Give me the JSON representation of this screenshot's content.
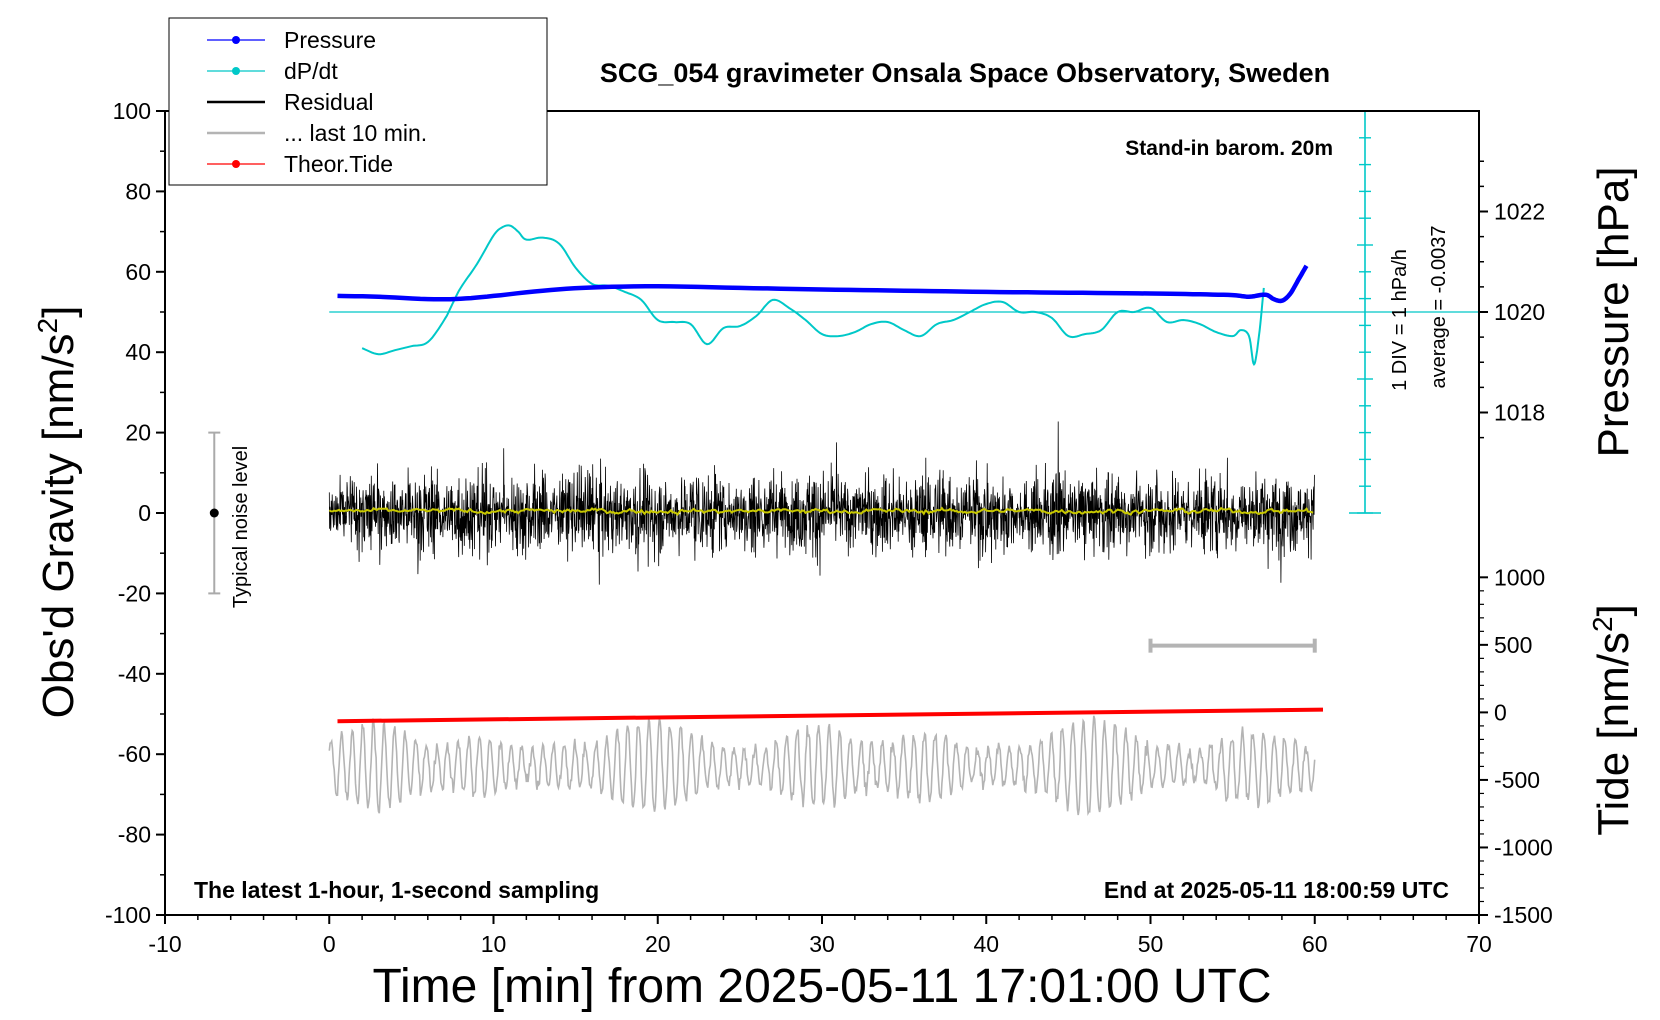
{
  "chart_data": {
    "type": "line",
    "title": "SCG_054 gravimeter Onsala Space Observatory, Sweden",
    "xlabel": "Time [min] from 2025-05-11 17:01:00 UTC",
    "ylabel_left": "Obs'd Gravity [nm/s",
    "ylabel_left_sup": "2",
    "ylabel_left_end": "]",
    "ylabel_right_top": "Pressure [hPa]",
    "ylabel_right_bottom": "Tide [nm/s",
    "ylabel_right_bottom_sup": "2",
    "ylabel_right_bottom_end": "]",
    "xlim": [
      -10,
      70
    ],
    "ylim": [
      -100,
      100
    ],
    "pressure_ylim_visible": [
      1018,
      1022
    ],
    "tide_ylim": [
      -1500,
      1000
    ],
    "x_ticks": [
      "-10",
      "0",
      "10",
      "20",
      "30",
      "40",
      "50",
      "60",
      "70"
    ],
    "y_ticks": [
      "100",
      "80",
      "60",
      "40",
      "20",
      "0",
      "-20",
      "-40",
      "-60",
      "-80",
      "-100"
    ],
    "pressure_ticks": [
      "1022",
      "1020",
      "1018"
    ],
    "tide_ticks": [
      "1000",
      "500",
      "0",
      "-500",
      "-1000",
      "-1500"
    ],
    "annotations": {
      "barometer": "Stand-in barom. 20m",
      "latest": "The latest 1-hour, 1-second sampling",
      "end": "End at 2025-05-11 18:00:59 UTC",
      "div": "1 DIV = 1 hPa/h",
      "average": "average = -0.0037",
      "noise": "Typical noise level"
    },
    "legend": {
      "position": "top-left, outside plot",
      "entries": [
        {
          "label": "Pressure",
          "color": "#0000ff",
          "marker": true
        },
        {
          "label": "dP/dt",
          "color": "#00c8c8",
          "marker": true
        },
        {
          "label": "Residual",
          "color": "#000000",
          "marker": false
        },
        {
          "label": "... last 10 min.",
          "color": "#b4b4b4",
          "marker": false
        },
        {
          "label": "Theor.Tide",
          "color": "#ff0000",
          "marker": true
        }
      ]
    },
    "series": [
      {
        "name": "Pressure",
        "color": "#0000ff",
        "x": [
          0.5,
          3,
          6,
          8,
          10,
          13,
          16,
          20,
          25,
          30,
          35,
          40,
          45,
          50,
          53,
          55,
          56,
          57,
          57.5,
          58,
          58.5,
          59,
          59.5
        ],
        "y": [
          54,
          53.8,
          53.2,
          53.3,
          54,
          55.3,
          56.1,
          56.4,
          56,
          55.6,
          55.3,
          55,
          54.8,
          54.6,
          54.4,
          54.2,
          53.8,
          54.3,
          53.2,
          52.8,
          54.5,
          58,
          61.5
        ]
      },
      {
        "name": "dP/dt",
        "color": "#00c8c8",
        "x": [
          2,
          3,
          4,
          5,
          6,
          7,
          7.5,
          8,
          9,
          10,
          10.5,
          11,
          11.5,
          12,
          13,
          14,
          15,
          16,
          17,
          18,
          19,
          20,
          21,
          22,
          23,
          24,
          25,
          26,
          27,
          28,
          29,
          30,
          31,
          32,
          33,
          34,
          35,
          36,
          37,
          38,
          39,
          40,
          41,
          42,
          43,
          44,
          45,
          46,
          47,
          48,
          49,
          50,
          51,
          52,
          53,
          54,
          55,
          55.5,
          56,
          56.3,
          56.6,
          56.9
        ],
        "y": [
          41,
          39.5,
          40.5,
          41.5,
          42.5,
          48,
          52,
          56,
          62,
          69,
          71,
          71.5,
          70,
          68,
          68.5,
          67,
          61,
          57,
          56.5,
          55,
          53,
          48,
          47.5,
          47,
          42,
          46,
          46.5,
          49,
          53,
          51,
          48,
          44.5,
          44,
          45,
          47,
          47.5,
          45.5,
          44,
          47,
          48,
          50,
          52,
          52.5,
          50,
          50,
          48.5,
          44,
          44.5,
          45.5,
          50,
          50,
          51,
          47.5,
          48,
          47,
          45,
          44,
          45.5,
          44,
          37,
          44,
          56
        ]
      },
      {
        "name": "Residual",
        "color": "#000000",
        "x_range": [
          0,
          60
        ],
        "center": 0,
        "amplitude_range": [
          -22,
          28
        ]
      },
      {
        "name": "Residual smoothed",
        "color": "#c8c800",
        "x_range": [
          0,
          60
        ],
        "center": 0.5,
        "amplitude_range": [
          -1.5,
          2
        ]
      },
      {
        "name": "... last 10 min.",
        "color": "#b4b4b4",
        "x_range": [
          0,
          60
        ],
        "center": -63,
        "amplitude_range": [
          -82,
          -42
        ]
      },
      {
        "name": "Theor.Tide",
        "color": "#ff0000",
        "x": [
          0.5,
          60.5
        ],
        "y": [
          -51.8,
          -48.9
        ]
      }
    ],
    "noise_bar": {
      "x": -7,
      "y": 0,
      "low": -20,
      "high": 20
    },
    "last10_bar": {
      "x": [
        50,
        60
      ],
      "y": -33
    }
  }
}
